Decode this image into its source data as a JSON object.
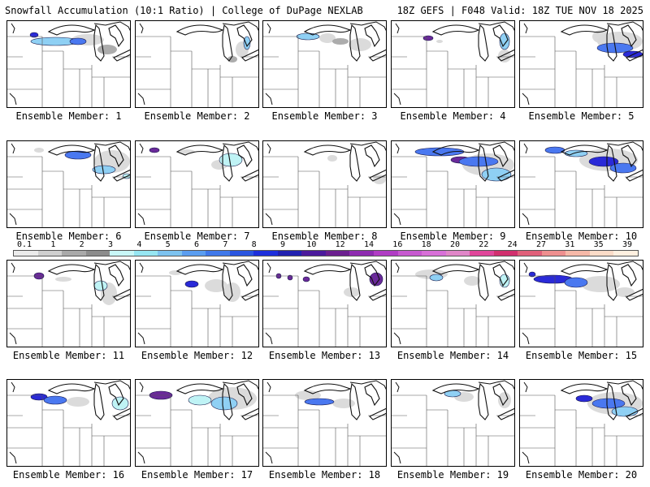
{
  "header": {
    "left": "Snowfall Accumulation (10:1 Ratio) | College of DuPage NEXLAB",
    "right": "18Z GEFS | F048 Valid: 18Z TUE NOV 18 2025"
  },
  "members": [
    {
      "label": "Ensemble Member: 1"
    },
    {
      "label": "Ensemble Member: 2"
    },
    {
      "label": "Ensemble Member: 3"
    },
    {
      "label": "Ensemble Member: 4"
    },
    {
      "label": "Ensemble Member: 5"
    },
    {
      "label": "Ensemble Member: 6"
    },
    {
      "label": "Ensemble Member: 7"
    },
    {
      "label": "Ensemble Member: 8"
    },
    {
      "label": "Ensemble Member: 9"
    },
    {
      "label": "Ensemble Member: 10"
    },
    {
      "label": "Ensemble Member: 11"
    },
    {
      "label": "Ensemble Member: 12"
    },
    {
      "label": "Ensemble Member: 13"
    },
    {
      "label": "Ensemble Member: 14"
    },
    {
      "label": "Ensemble Member: 15"
    },
    {
      "label": "Ensemble Member: 16"
    },
    {
      "label": "Ensemble Member: 17"
    },
    {
      "label": "Ensemble Member: 18"
    },
    {
      "label": "Ensemble Member: 19"
    },
    {
      "label": "Ensemble Member: 20"
    }
  ],
  "scale": {
    "labels": [
      "0.1",
      "1",
      "2",
      "3",
      "4",
      "5",
      "6",
      "7",
      "8",
      "9",
      "10",
      "12",
      "14",
      "16",
      "18",
      "20",
      "22",
      "24",
      "27",
      "31",
      "35",
      "39"
    ],
    "colors": [
      "#ebebeb",
      "#cfcfcf",
      "#a9a9a9",
      "#8c8c8c",
      "#c8f7f7",
      "#96e6f2",
      "#7cc2ef",
      "#5a9df0",
      "#3f78ea",
      "#2a55e0",
      "#1d2fdc",
      "#2020b0",
      "#4b1a9c",
      "#6b1f8f",
      "#8e2bb0",
      "#b03cc4",
      "#c759d0",
      "#d870d8",
      "#e086c8",
      "#e0469a",
      "#d1306e",
      "#e0607a",
      "#ee8f8f",
      "#f6b8a8",
      "#fcdcc8",
      "#fff0e0"
    ]
  },
  "colors": {
    "light_gray": "#d9d9d9",
    "mid_gray": "#a8a8a8",
    "dark_gray": "#7a7a7a",
    "light_cyan": "#bff3f5",
    "light_blue": "#8fd0f4",
    "blue": "#4a78f0",
    "deep_blue": "#2a2ad8",
    "purple": "#6a2a9a"
  }
}
